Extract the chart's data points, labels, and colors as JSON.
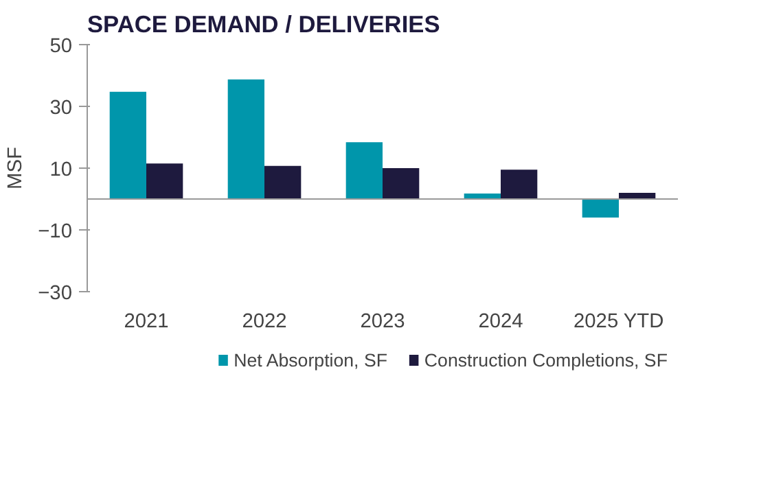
{
  "chart_data": {
    "type": "bar",
    "title": "SPACE DEMAND / DELIVERIES",
    "ylabel": "MSF",
    "categories": [
      "2021",
      "2022",
      "2023",
      "2024",
      "2025 YTD"
    ],
    "series": [
      {
        "name": "Net Absorption, SF",
        "color": "#0096ab",
        "values": [
          34.7,
          38.7,
          18.4,
          1.8,
          -6
        ]
      },
      {
        "name": "Construction Completions, SF",
        "color": "#1e1a3e",
        "values": [
          11.5,
          10.7,
          10,
          9.5,
          2
        ]
      }
    ],
    "ylim": [
      -30,
      50
    ],
    "yticks": [
      -30,
      -10,
      10,
      30,
      50
    ],
    "grid": false,
    "legend": "bottom"
  }
}
